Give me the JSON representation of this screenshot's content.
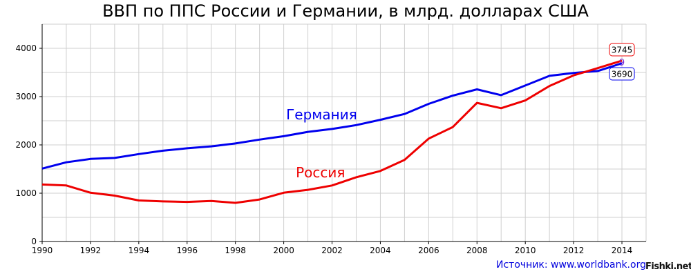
{
  "chart_data": {
    "type": "line",
    "title": "ВВП по ППС России и Германии, в млрд. долларах США",
    "xlabel": "",
    "ylabel": "",
    "xlim": [
      1990,
      2015
    ],
    "ylim": [
      0,
      4500
    ],
    "xticks": [
      1990,
      1992,
      1994,
      1996,
      1998,
      2000,
      2002,
      2004,
      2006,
      2008,
      2010,
      2012,
      2014
    ],
    "yticks": [
      0,
      1000,
      2000,
      3000,
      4000
    ],
    "grid": true,
    "x": [
      1990,
      1991,
      1992,
      1993,
      1994,
      1995,
      1996,
      1997,
      1998,
      1999,
      2000,
      2001,
      2002,
      2003,
      2004,
      2005,
      2006,
      2007,
      2008,
      2009,
      2010,
      2011,
      2012,
      2013,
      2014
    ],
    "series": [
      {
        "name": "Германия",
        "color": "#0000ee",
        "values": [
          1510,
          1640,
          1710,
          1730,
          1810,
          1880,
          1930,
          1970,
          2030,
          2110,
          2180,
          2270,
          2330,
          2410,
          2520,
          2640,
          2850,
          3020,
          3150,
          3030,
          3230,
          3430,
          3490,
          3530,
          3690
        ]
      },
      {
        "name": "Россия",
        "color": "#ee0000",
        "values": [
          1180,
          1160,
          1010,
          950,
          850,
          830,
          820,
          840,
          800,
          870,
          1010,
          1070,
          1160,
          1330,
          1460,
          1690,
          2130,
          2370,
          2870,
          2760,
          2920,
          3220,
          3440,
          3590,
          3745
        ]
      }
    ],
    "annotations": {
      "russia_end": "3745",
      "germany_end": "3690",
      "end_marker": "9"
    }
  },
  "source": "Источник: www.worldbank.org",
  "watermark": "Fishki.net"
}
